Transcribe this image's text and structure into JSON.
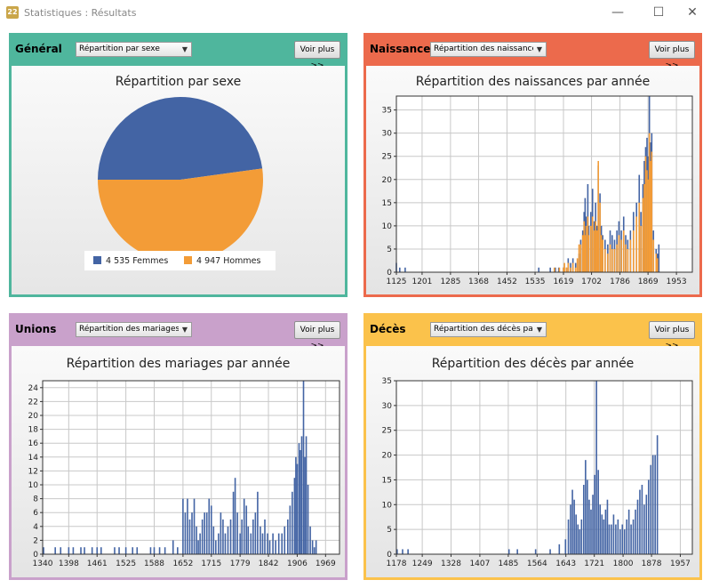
{
  "window": {
    "title": "Statistiques : Résultats",
    "app_icon_text": "22",
    "controls": {
      "minimize": "—",
      "maximize": "☐",
      "close": "✕"
    }
  },
  "panels": {
    "general": {
      "title": "Général",
      "combo_value": "Répartition par sexe",
      "button_label": "Voir plus >>",
      "accent": "#4fb69d"
    },
    "naissances": {
      "title": "Naissances",
      "combo_value": "Répartition des naissances",
      "button_label": "Voir plus >>",
      "accent": "#ec6a4c"
    },
    "unions": {
      "title": "Unions",
      "combo_value": "Répartition des mariages pa",
      "button_label": "Voir plus >>",
      "accent": "#c9a1cb"
    },
    "deces": {
      "title": "Décès",
      "combo_value": "Répartition des décès par a",
      "button_label": "Voir plus >>",
      "accent": "#fbc24b"
    }
  },
  "chart_data": [
    {
      "id": "sexe",
      "type": "pie",
      "title": "Répartition par sexe",
      "slices": [
        {
          "label": "4 535 Femmes",
          "value": 4535,
          "color": "#4364a4"
        },
        {
          "label": "4 947 Hommes",
          "value": 4947,
          "color": "#f39c37"
        }
      ],
      "legend": "bottom"
    },
    {
      "id": "naissances",
      "type": "bar",
      "title": "Répartition des naissances par année",
      "xlim": [
        1125,
        2000
      ],
      "ylim": [
        0,
        38
      ],
      "yticks": [
        0,
        5,
        10,
        15,
        20,
        25,
        30,
        35
      ],
      "xticks": [
        1125,
        1201,
        1285,
        1368,
        1452,
        1535,
        1619,
        1702,
        1786,
        1869,
        1953
      ],
      "grid": true,
      "series": [
        {
          "color": "#4364a4",
          "values": [
            [
              1125,
              2
            ],
            [
              1135,
              1
            ],
            [
              1151,
              1
            ],
            [
              1546,
              1
            ],
            [
              1580,
              1
            ],
            [
              1595,
              1
            ],
            [
              1605,
              1
            ],
            [
              1619,
              1
            ],
            [
              1628,
              1
            ],
            [
              1633,
              3
            ],
            [
              1640,
              2
            ],
            [
              1647,
              3
            ],
            [
              1655,
              2
            ],
            [
              1665,
              4
            ],
            [
              1670,
              7
            ],
            [
              1676,
              9
            ],
            [
              1680,
              13
            ],
            [
              1683,
              16
            ],
            [
              1686,
              12
            ],
            [
              1691,
              19
            ],
            [
              1694,
              10
            ],
            [
              1700,
              13
            ],
            [
              1705,
              18
            ],
            [
              1710,
              11
            ],
            [
              1714,
              15
            ],
            [
              1718,
              10
            ],
            [
              1722,
              23
            ],
            [
              1727,
              17
            ],
            [
              1731,
              10
            ],
            [
              1735,
              8
            ],
            [
              1742,
              7
            ],
            [
              1750,
              6
            ],
            [
              1757,
              9
            ],
            [
              1763,
              8
            ],
            [
              1770,
              7
            ],
            [
              1777,
              9
            ],
            [
              1783,
              11
            ],
            [
              1790,
              9
            ],
            [
              1797,
              12
            ],
            [
              1803,
              8
            ],
            [
              1809,
              7
            ],
            [
              1817,
              9
            ],
            [
              1826,
              13
            ],
            [
              1835,
              15
            ],
            [
              1843,
              21
            ],
            [
              1848,
              13
            ],
            [
              1854,
              19
            ],
            [
              1858,
              24
            ],
            [
              1862,
              27
            ],
            [
              1866,
              29
            ],
            [
              1869,
              25
            ],
            [
              1873,
              38
            ],
            [
              1876,
              28
            ],
            [
              1880,
              30
            ],
            [
              1885,
              9
            ],
            [
              1893,
              5
            ],
            [
              1897,
              4
            ],
            [
              1901,
              6
            ]
          ]
        },
        {
          "color": "#f39c37",
          "values": [
            [
              1592,
              1
            ],
            [
              1607,
              1
            ],
            [
              1619,
              1
            ],
            [
              1622,
              2
            ],
            [
              1628,
              1
            ],
            [
              1633,
              2
            ],
            [
              1640,
              1
            ],
            [
              1647,
              2
            ],
            [
              1655,
              1
            ],
            [
              1660,
              3
            ],
            [
              1665,
              6
            ],
            [
              1670,
              6
            ],
            [
              1676,
              8
            ],
            [
              1680,
              11
            ],
            [
              1683,
              8
            ],
            [
              1686,
              10
            ],
            [
              1691,
              12
            ],
            [
              1694,
              8
            ],
            [
              1700,
              10
            ],
            [
              1705,
              12
            ],
            [
              1710,
              9
            ],
            [
              1714,
              11
            ],
            [
              1718,
              9
            ],
            [
              1722,
              24
            ],
            [
              1727,
              15
            ],
            [
              1731,
              8
            ],
            [
              1735,
              7
            ],
            [
              1742,
              5
            ],
            [
              1750,
              4
            ],
            [
              1757,
              6
            ],
            [
              1763,
              5
            ],
            [
              1770,
              5
            ],
            [
              1777,
              6
            ],
            [
              1783,
              8
            ],
            [
              1790,
              7
            ],
            [
              1797,
              9
            ],
            [
              1803,
              6
            ],
            [
              1809,
              5
            ],
            [
              1817,
              7
            ],
            [
              1826,
              9
            ],
            [
              1835,
              12
            ],
            [
              1843,
              15
            ],
            [
              1848,
              10
            ],
            [
              1854,
              16
            ],
            [
              1858,
              19
            ],
            [
              1862,
              25
            ],
            [
              1866,
              22
            ],
            [
              1869,
              20
            ],
            [
              1873,
              30
            ],
            [
              1876,
              24
            ],
            [
              1880,
              26
            ],
            [
              1885,
              7
            ],
            [
              1893,
              4
            ],
            [
              1897,
              3
            ]
          ]
        }
      ]
    },
    {
      "id": "mariages",
      "type": "bar",
      "title": "Répartition des mariages par année",
      "xlim": [
        1340,
        2000
      ],
      "ylim": [
        0,
        25
      ],
      "yticks": [
        0,
        2,
        4,
        6,
        8,
        10,
        12,
        14,
        16,
        18,
        20,
        22,
        24
      ],
      "xticks": [
        1340,
        1398,
        1461,
        1525,
        1588,
        1652,
        1715,
        1779,
        1842,
        1906,
        1969
      ],
      "grid": true,
      "series": [
        {
          "color": "#4364a4",
          "values": [
            [
              1342,
              1
            ],
            [
              1368,
              1
            ],
            [
              1380,
              1
            ],
            [
              1398,
              1
            ],
            [
              1408,
              1
            ],
            [
              1425,
              1
            ],
            [
              1433,
              1
            ],
            [
              1450,
              1
            ],
            [
              1461,
              1
            ],
            [
              1470,
              1
            ],
            [
              1500,
              1
            ],
            [
              1510,
              1
            ],
            [
              1525,
              1
            ],
            [
              1540,
              1
            ],
            [
              1550,
              1
            ],
            [
              1580,
              1
            ],
            [
              1588,
              1
            ],
            [
              1600,
              1
            ],
            [
              1612,
              1
            ],
            [
              1630,
              2
            ],
            [
              1640,
              1
            ],
            [
              1652,
              8
            ],
            [
              1657,
              6
            ],
            [
              1662,
              8
            ],
            [
              1667,
              5
            ],
            [
              1672,
              6
            ],
            [
              1677,
              8
            ],
            [
              1682,
              4
            ],
            [
              1686,
              2
            ],
            [
              1690,
              3
            ],
            [
              1695,
              5
            ],
            [
              1700,
              6
            ],
            [
              1705,
              6
            ],
            [
              1710,
              8
            ],
            [
              1715,
              7
            ],
            [
              1720,
              4
            ],
            [
              1725,
              2
            ],
            [
              1731,
              3
            ],
            [
              1736,
              6
            ],
            [
              1741,
              5
            ],
            [
              1746,
              3
            ],
            [
              1752,
              4
            ],
            [
              1758,
              5
            ],
            [
              1764,
              9
            ],
            [
              1768,
              11
            ],
            [
              1773,
              6
            ],
            [
              1779,
              3
            ],
            [
              1783,
              5
            ],
            [
              1788,
              8
            ],
            [
              1793,
              7
            ],
            [
              1797,
              4
            ],
            [
              1803,
              3
            ],
            [
              1808,
              5
            ],
            [
              1813,
              6
            ],
            [
              1818,
              9
            ],
            [
              1824,
              4
            ],
            [
              1829,
              3
            ],
            [
              1834,
              5
            ],
            [
              1840,
              3
            ],
            [
              1845,
              2
            ],
            [
              1852,
              3
            ],
            [
              1858,
              2
            ],
            [
              1865,
              3
            ],
            [
              1872,
              3
            ],
            [
              1878,
              4
            ],
            [
              1885,
              5
            ],
            [
              1890,
              7
            ],
            [
              1895,
              9
            ],
            [
              1900,
              11
            ],
            [
              1903,
              14
            ],
            [
              1906,
              13
            ],
            [
              1910,
              16
            ],
            [
              1913,
              15
            ],
            [
              1916,
              17
            ],
            [
              1920,
              25
            ],
            [
              1923,
              14
            ],
            [
              1926,
              17
            ],
            [
              1930,
              10
            ],
            [
              1935,
              4
            ],
            [
              1940,
              2
            ],
            [
              1944,
              1
            ],
            [
              1948,
              2
            ]
          ]
        }
      ]
    },
    {
      "id": "deces",
      "type": "bar",
      "title": "Répartition des décès par année",
      "xlim": [
        1178,
        1990
      ],
      "ylim": [
        0,
        35
      ],
      "yticks": [
        0,
        5,
        10,
        15,
        20,
        25,
        30,
        35
      ],
      "xticks": [
        1178,
        1249,
        1328,
        1407,
        1485,
        1564,
        1643,
        1721,
        1800,
        1878,
        1957
      ],
      "grid": true,
      "series": [
        {
          "color": "#4364a4",
          "values": [
            [
              1180,
              1
            ],
            [
              1195,
              1
            ],
            [
              1210,
              1
            ],
            [
              1487,
              1
            ],
            [
              1510,
              1
            ],
            [
              1560,
              1
            ],
            [
              1600,
              1
            ],
            [
              1625,
              2
            ],
            [
              1642,
              3
            ],
            [
              1650,
              7
            ],
            [
              1656,
              10
            ],
            [
              1661,
              13
            ],
            [
              1666,
              11
            ],
            [
              1671,
              8
            ],
            [
              1676,
              6
            ],
            [
              1681,
              5
            ],
            [
              1686,
              7
            ],
            [
              1692,
              14
            ],
            [
              1697,
              19
            ],
            [
              1702,
              15
            ],
            [
              1707,
              11
            ],
            [
              1712,
              9
            ],
            [
              1717,
              12
            ],
            [
              1722,
              16
            ],
            [
              1727,
              35
            ],
            [
              1732,
              17
            ],
            [
              1737,
              10
            ],
            [
              1742,
              8
            ],
            [
              1747,
              7
            ],
            [
              1752,
              9
            ],
            [
              1757,
              11
            ],
            [
              1762,
              6
            ],
            [
              1768,
              6
            ],
            [
              1774,
              8
            ],
            [
              1780,
              6
            ],
            [
              1786,
              7
            ],
            [
              1792,
              5
            ],
            [
              1798,
              6
            ],
            [
              1804,
              5
            ],
            [
              1810,
              7
            ],
            [
              1816,
              9
            ],
            [
              1822,
              6
            ],
            [
              1828,
              7
            ],
            [
              1834,
              9
            ],
            [
              1840,
              11
            ],
            [
              1846,
              13
            ],
            [
              1852,
              14
            ],
            [
              1858,
              10
            ],
            [
              1864,
              12
            ],
            [
              1870,
              15
            ],
            [
              1876,
              18
            ],
            [
              1882,
              20
            ],
            [
              1888,
              20
            ],
            [
              1894,
              24
            ]
          ]
        }
      ]
    }
  ]
}
